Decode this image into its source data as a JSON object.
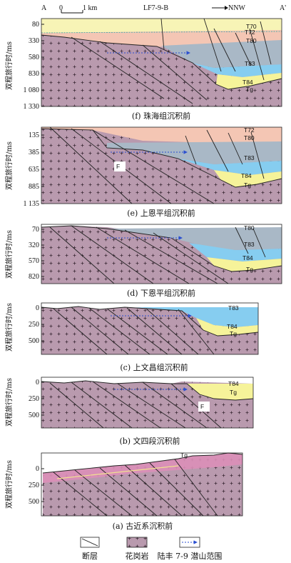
{
  "header": {
    "left_end": "A",
    "right_end": "A'",
    "scale_zero": "0",
    "scale_label": "1 km",
    "well": "LF7-9-B",
    "direction": "NNW"
  },
  "y_axis_label": "双程旅行时/ms",
  "panels": [
    {
      "caption": "(f) 珠海组沉积前",
      "ticks": [
        "80",
        "330",
        "580",
        "830",
        "1 080",
        "1 330"
      ],
      "horizons": [
        "T70",
        "T72",
        "T80",
        "T83",
        "T84",
        "Tg"
      ],
      "fault_label": ""
    },
    {
      "caption": "(e) 上恩平组沉积前",
      "ticks": [
        "135",
        "385",
        "635",
        "885",
        "1 135"
      ],
      "horizons": [
        "T72",
        "T80",
        "T83",
        "T84",
        "Tg"
      ],
      "fault_label": "F"
    },
    {
      "caption": "(d) 下恩平组沉积前",
      "ticks": [
        "70",
        "320",
        "570",
        "820"
      ],
      "horizons": [
        "T80",
        "T83",
        "T84",
        "Tg"
      ],
      "fault_label": ""
    },
    {
      "caption": "(c) 上文昌组沉积前",
      "ticks": [
        "0",
        "250",
        "500"
      ],
      "horizons": [
        "T83",
        "T84",
        "Tg"
      ],
      "fault_label": ""
    },
    {
      "caption": "(b) 文四段沉积前",
      "ticks": [
        "0",
        "250",
        "500"
      ],
      "horizons": [
        "T84",
        "Tg"
      ],
      "fault_label": "F"
    },
    {
      "caption": "(a) 古近系沉积前",
      "ticks": [
        "0",
        "250",
        "500"
      ],
      "horizons": [
        "Tg"
      ],
      "fault_label": ""
    }
  ],
  "legend": {
    "fault": "断层",
    "granite": "花岗岩",
    "buried_hill": "陆丰 7-9 潜山范围"
  },
  "colors": {
    "granite": "#b99aae",
    "t84_t83": "#f6f39a",
    "t83_t80": "#86cdf0",
    "t80_t72": "#a9b8c6",
    "t72_t70": "#f4c6b4",
    "t70_top": "#f7f4b6",
    "paleo_band": "#dc8fb8",
    "hill_arrow": "#2b4fd0"
  }
}
